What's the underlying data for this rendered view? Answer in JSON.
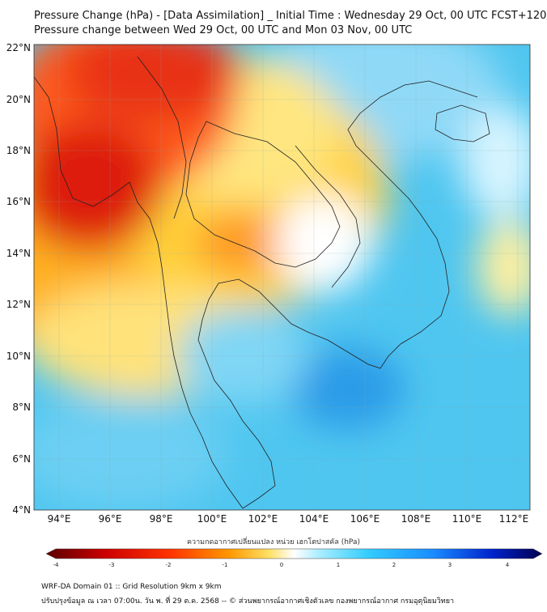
{
  "header": {
    "title": "Pressure Change (hPa) - [Data Assimilation] _ Initial Time : Wednesday 29 Oct, 00 UTC FCST+120",
    "subtitle": "Pressure change between Wed 29 Oct, 00 UTC and Mon 03 Nov, 00 UTC"
  },
  "map": {
    "lat_labels": [
      "22°N",
      "20°N",
      "18°N",
      "16°N",
      "14°N",
      "12°N",
      "10°N",
      "8°N",
      "6°N",
      "4°N"
    ],
    "lon_labels": [
      "94°E",
      "96°E",
      "98°E",
      "100°E",
      "102°E",
      "104°E",
      "106°E",
      "108°E",
      "110°E",
      "112°E"
    ],
    "lat_range": [
      4,
      22.3
    ],
    "lon_range": [
      93,
      112.5
    ],
    "colors": {
      "strong_fall": "#cc0000",
      "fall": "#ff8c1a",
      "weak_fall": "#ffe066",
      "neutral": "#ffffff",
      "weak_rise": "#9fe3ff",
      "rise": "#33bbee",
      "strong_rise": "#1a5fd6"
    }
  },
  "colorbar": {
    "label": "ความกดอากาศเปลี่ยนแปลง หน่วย เฮกโตปาสคัล (hPa)",
    "ticks": [
      "-4",
      "-3",
      "-2",
      "-1",
      "0",
      "1",
      "2",
      "3",
      "4"
    ],
    "range": [
      -4,
      4
    ]
  },
  "footer": {
    "line1": "WRF-DA Domain 01 :: Grid Resolution 9km x 9km",
    "line2": "ปรับปรุงข้อมูล ณ เวลา 07:00น. วัน พ. ที่ 29 ต.ค. 2568 -- © ส่วนพยากรณ์อากาศเชิงตัวเลข กองพยากรณ์อากาศ กรมอุตุนิยมวิทยา"
  }
}
